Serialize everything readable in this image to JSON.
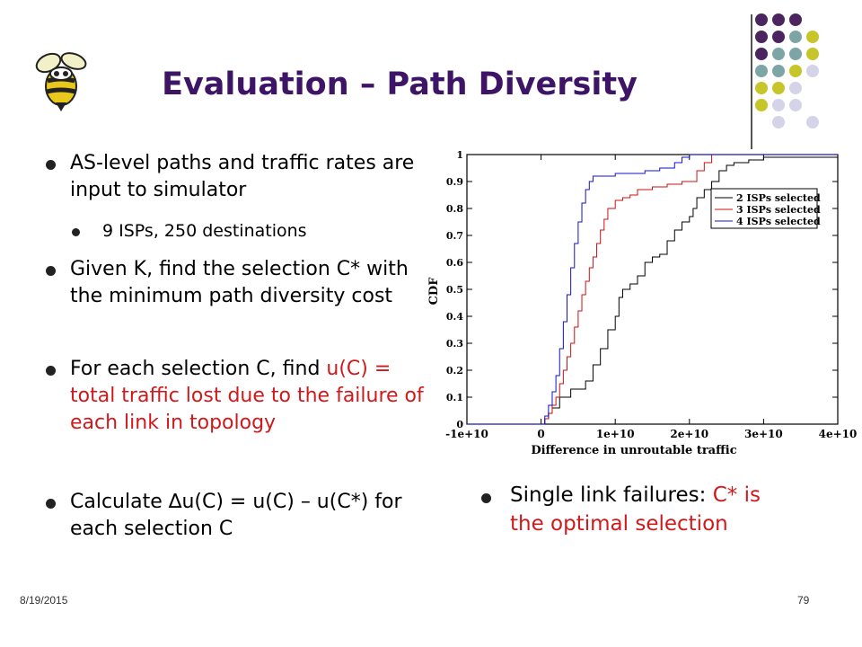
{
  "slide": {
    "title": "Evaluation – Path Diversity",
    "date": "8/19/2015",
    "page_number": "79",
    "title_color": "#3d1466",
    "highlight_color": "#d0191b"
  },
  "bullets": [
    {
      "text": "AS-level paths and traffic rates are input to simulator"
    },
    {
      "text": "9 ISPs, 250 destinations",
      "level": 2
    },
    {
      "text": "Given K, find the selection C* with the minimum path diversity cost"
    },
    {
      "text_plain": "For each selection C, find",
      "text_red": "u(C) = total traffic lost due to the failure of each link in topology"
    },
    {
      "text": "Calculate ∆u(C) = u(C) – u(C*) for each selection C"
    }
  ],
  "right_bullet": {
    "text_plain": "Single link failures:",
    "text_red": "C* is the optimal selection"
  },
  "icons": {
    "logo": "yellow-jacket-mascot-icon",
    "decoration": "dot-grid-decoration"
  },
  "chart_data": {
    "type": "line",
    "xlabel": "Difference in unroutable traffic",
    "ylabel": "CDF",
    "xlim": [
      -10000000000.0,
      40000000000.0
    ],
    "ylim": [
      0,
      1
    ],
    "x_tick_labels": [
      "-1e+10",
      "0",
      "1e+10",
      "2e+10",
      "3e+10",
      "4e+10"
    ],
    "x_ticks": [
      -10000000000.0,
      0,
      10000000000.0,
      20000000000.0,
      30000000000.0,
      40000000000.0
    ],
    "y_tick_labels": [
      "0",
      "0.1",
      "0.2",
      "0.3",
      "0.4",
      "0.5",
      "0.6",
      "0.7",
      "0.8",
      "0.9",
      "1"
    ],
    "y_ticks": [
      0,
      0.1,
      0.2,
      0.3,
      0.4,
      0.5,
      0.6,
      0.7,
      0.8,
      0.9,
      1
    ],
    "legend_position": "top-right",
    "series": [
      {
        "name": "2 ISPs selected",
        "color": "#000000",
        "x": [
          -10000000000.0,
          0,
          500000000.0,
          1000000000.0,
          1500000000.0,
          2500000000.0,
          4000000000.0,
          5500000000.0,
          6000000000.0,
          7000000000.0,
          8000000000.0,
          9000000000.0,
          10000000000.0,
          10500000000.0,
          11000000000.0,
          12000000000.0,
          13000000000.0,
          14000000000.0,
          15000000000.0,
          16000000000.0,
          17000000000.0,
          18000000000.0,
          19000000000.0,
          20000000000.0,
          20500000000.0,
          21000000000.0,
          22000000000.0,
          23000000000.0,
          24000000000.0,
          25000000000.0,
          26000000000.0,
          28000000000.0,
          30000000000.0,
          40000000000.0
        ],
        "y": [
          0,
          0,
          0.02,
          0.04,
          0.06,
          0.1,
          0.13,
          0.13,
          0.16,
          0.22,
          0.28,
          0.35,
          0.4,
          0.47,
          0.5,
          0.52,
          0.55,
          0.6,
          0.62,
          0.63,
          0.68,
          0.72,
          0.75,
          0.77,
          0.8,
          0.84,
          0.87,
          0.9,
          0.94,
          0.96,
          0.97,
          0.98,
          0.99,
          1.0
        ]
      },
      {
        "name": "3 ISPs selected",
        "color": "#cc1111",
        "x": [
          -10000000000.0,
          0,
          500000000.0,
          1000000000.0,
          1500000000.0,
          2000000000.0,
          2500000000.0,
          3000000000.0,
          3500000000.0,
          4000000000.0,
          4500000000.0,
          5000000000.0,
          5500000000.0,
          6000000000.0,
          6500000000.0,
          7000000000.0,
          7500000000.0,
          8000000000.0,
          8500000000.0,
          9000000000.0,
          10000000000.0,
          11000000000.0,
          12000000000.0,
          13000000000.0,
          15000000000.0,
          17000000000.0,
          19000000000.0,
          21000000000.0,
          22000000000.0,
          23000000000.0,
          40000000000.0
        ],
        "y": [
          0,
          0,
          0.02,
          0.04,
          0.07,
          0.1,
          0.15,
          0.2,
          0.25,
          0.3,
          0.36,
          0.42,
          0.48,
          0.53,
          0.58,
          0.62,
          0.67,
          0.72,
          0.76,
          0.8,
          0.83,
          0.84,
          0.85,
          0.87,
          0.88,
          0.89,
          0.9,
          0.94,
          0.97,
          1.0,
          1.0
        ]
      },
      {
        "name": "4 ISPs selected",
        "color": "#1111cc",
        "x": [
          -10000000000.0,
          0,
          500000000.0,
          1000000000.0,
          1500000000.0,
          2000000000.0,
          2500000000.0,
          3000000000.0,
          3500000000.0,
          4000000000.0,
          4500000000.0,
          5000000000.0,
          5500000000.0,
          6000000000.0,
          6500000000.0,
          7000000000.0,
          8000000000.0,
          9000000000.0,
          10000000000.0,
          12000000000.0,
          14000000000.0,
          16000000000.0,
          18000000000.0,
          19000000000.0,
          20000000000.0,
          40000000000.0
        ],
        "y": [
          0,
          0,
          0.03,
          0.07,
          0.12,
          0.18,
          0.28,
          0.38,
          0.48,
          0.58,
          0.67,
          0.75,
          0.82,
          0.87,
          0.9,
          0.92,
          0.92,
          0.92,
          0.93,
          0.93,
          0.94,
          0.95,
          0.97,
          0.99,
          1.0,
          1.0
        ]
      }
    ]
  }
}
